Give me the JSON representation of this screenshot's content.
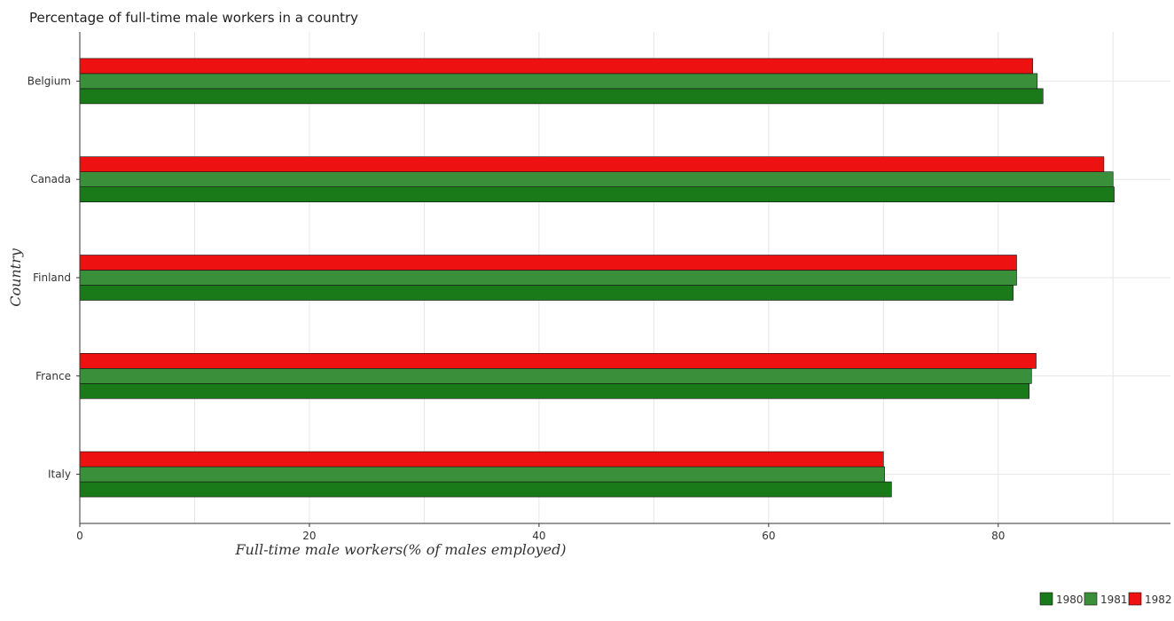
{
  "chart_data": {
    "type": "bar",
    "orientation": "horizontal",
    "title": "Percentage of full-time male workers in a country",
    "xlabel": "Full-time male workers(% of males employed)",
    "ylabel": "Country",
    "xlim": [
      0,
      95
    ],
    "xticks": [
      0,
      20,
      40,
      60,
      80
    ],
    "grid": true,
    "legend_position": "bottom-right",
    "categories": [
      "Belgium",
      "Canada",
      "Finland",
      "France",
      "Italy"
    ],
    "series": [
      {
        "name": "1980",
        "color": "#1a7a1a",
        "values": [
          83.9,
          90.1,
          81.3,
          82.7,
          70.7
        ]
      },
      {
        "name": "1981",
        "color": "#3a8f3a",
        "values": [
          83.4,
          90.0,
          81.6,
          82.9,
          70.1
        ]
      },
      {
        "name": "1982",
        "color": "#ee1111",
        "values": [
          83.0,
          89.2,
          81.6,
          83.3,
          70.0
        ]
      }
    ]
  }
}
